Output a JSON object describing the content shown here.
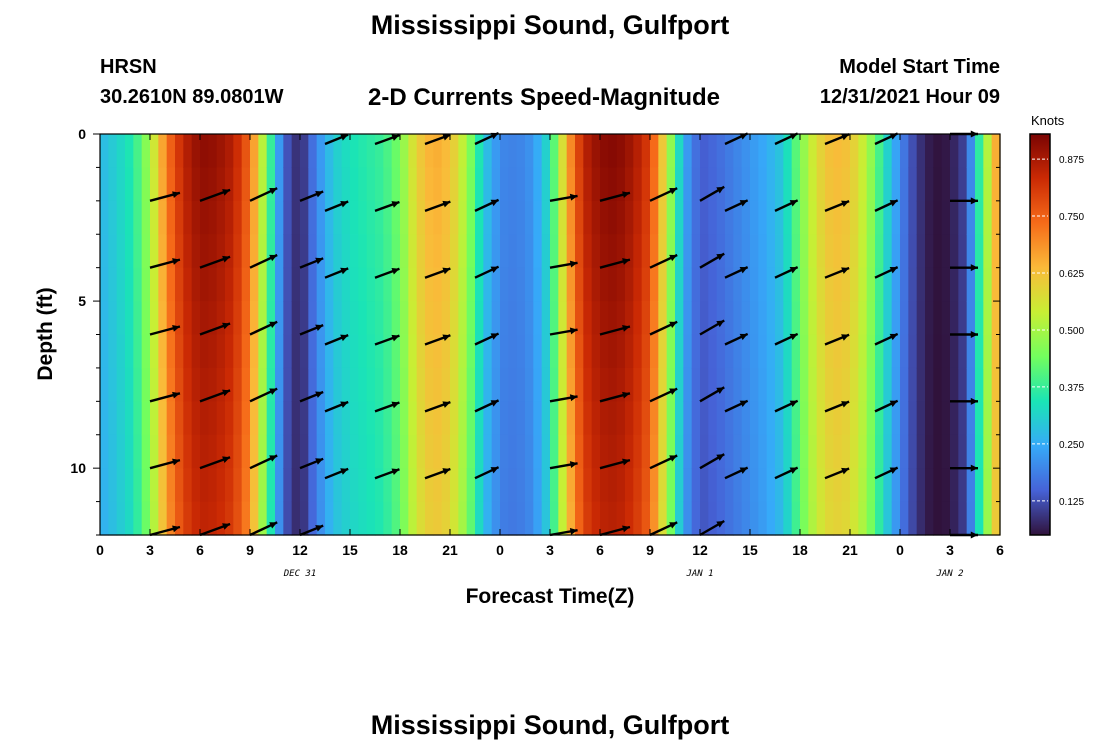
{
  "header": {
    "title": "Mississippi Sound, Gulfport",
    "station": "HRSN",
    "coords": "30.2610N  89.0801W",
    "subtitle": "2-D Currents Speed-Magnitude",
    "start_label": "Model Start Time",
    "start_value": "12/31/2021 Hour 09"
  },
  "footer": {
    "title": "Mississippi Sound, Gulfport"
  },
  "chart_data": {
    "type": "heatmap",
    "title": "2-D Currents Speed-Magnitude",
    "xlabel": "Forecast Time(Z)",
    "ylabel": "Depth (ft)",
    "x_range_hours": [
      0,
      54
    ],
    "x_ticks": [
      {
        "h": 0,
        "label": "0"
      },
      {
        "h": 3,
        "label": "3"
      },
      {
        "h": 6,
        "label": "6"
      },
      {
        "h": 9,
        "label": "9"
      },
      {
        "h": 12,
        "label": "12"
      },
      {
        "h": 15,
        "label": "15"
      },
      {
        "h": 18,
        "label": "18"
      },
      {
        "h": 21,
        "label": "21"
      },
      {
        "h": 24,
        "label": "0"
      },
      {
        "h": 27,
        "label": "3"
      },
      {
        "h": 30,
        "label": "6"
      },
      {
        "h": 33,
        "label": "9"
      },
      {
        "h": 36,
        "label": "12"
      },
      {
        "h": 39,
        "label": "15"
      },
      {
        "h": 42,
        "label": "18"
      },
      {
        "h": 45,
        "label": "21"
      },
      {
        "h": 48,
        "label": "0"
      },
      {
        "h": 51,
        "label": "3"
      },
      {
        "h": 54,
        "label": "6"
      }
    ],
    "date_labels": [
      {
        "h": 12,
        "label": "DEC 31"
      },
      {
        "h": 36,
        "label": "JAN 1"
      },
      {
        "h": 51,
        "label": "JAN 2"
      }
    ],
    "ylim": [
      0,
      12
    ],
    "y_ticks": [
      0,
      5,
      10
    ],
    "colorbar": {
      "unit": "Knots",
      "min": 0.05,
      "max": 0.93,
      "ticks": [
        "0.125",
        "0.250",
        "0.375",
        "0.500",
        "0.625",
        "0.750",
        "0.875"
      ],
      "tick_values": [
        0.125,
        0.25,
        0.375,
        0.5,
        0.625,
        0.75,
        0.875
      ],
      "stops": [
        "#30123b",
        "#4662d7",
        "#36aaf9",
        "#1ae4b6",
        "#72fe5e",
        "#c8ef34",
        "#faba39",
        "#f66b19",
        "#cb2a04",
        "#7a0403"
      ]
    },
    "speed_profile": [
      {
        "h": 0,
        "v": 0.27
      },
      {
        "h": 1,
        "v": 0.31
      },
      {
        "h": 2,
        "v": 0.36
      },
      {
        "h": 3,
        "v": 0.5
      },
      {
        "h": 4,
        "v": 0.72
      },
      {
        "h": 5,
        "v": 0.85
      },
      {
        "h": 6,
        "v": 0.91
      },
      {
        "h": 7,
        "v": 0.9
      },
      {
        "h": 8,
        "v": 0.86
      },
      {
        "h": 9,
        "v": 0.74
      },
      {
        "h": 10,
        "v": 0.45
      },
      {
        "h": 11,
        "v": 0.15
      },
      {
        "h": 12,
        "v": 0.07
      },
      {
        "h": 13,
        "v": 0.2
      },
      {
        "h": 14,
        "v": 0.3
      },
      {
        "h": 15,
        "v": 0.34
      },
      {
        "h": 16,
        "v": 0.36
      },
      {
        "h": 17,
        "v": 0.38
      },
      {
        "h": 18,
        "v": 0.45
      },
      {
        "h": 19,
        "v": 0.6
      },
      {
        "h": 20,
        "v": 0.66
      },
      {
        "h": 21,
        "v": 0.63
      },
      {
        "h": 22,
        "v": 0.5
      },
      {
        "h": 23,
        "v": 0.3
      },
      {
        "h": 24,
        "v": 0.2
      },
      {
        "h": 25,
        "v": 0.19
      },
      {
        "h": 26,
        "v": 0.22
      },
      {
        "h": 27,
        "v": 0.34
      },
      {
        "h": 28,
        "v": 0.65
      },
      {
        "h": 29,
        "v": 0.85
      },
      {
        "h": 30,
        "v": 0.91
      },
      {
        "h": 31,
        "v": 0.92
      },
      {
        "h": 32,
        "v": 0.88
      },
      {
        "h": 33,
        "v": 0.8
      },
      {
        "h": 34,
        "v": 0.55
      },
      {
        "h": 35,
        "v": 0.25
      },
      {
        "h": 36,
        "v": 0.14
      },
      {
        "h": 37,
        "v": 0.16
      },
      {
        "h": 38,
        "v": 0.19
      },
      {
        "h": 39,
        "v": 0.22
      },
      {
        "h": 40,
        "v": 0.25
      },
      {
        "h": 41,
        "v": 0.3
      },
      {
        "h": 42,
        "v": 0.45
      },
      {
        "h": 43,
        "v": 0.58
      },
      {
        "h": 44,
        "v": 0.64
      },
      {
        "h": 45,
        "v": 0.62
      },
      {
        "h": 46,
        "v": 0.52
      },
      {
        "h": 47,
        "v": 0.35
      },
      {
        "h": 48,
        "v": 0.2
      },
      {
        "h": 49,
        "v": 0.1
      },
      {
        "h": 50,
        "v": 0.05
      },
      {
        "h": 51,
        "v": 0.06
      },
      {
        "h": 52,
        "v": 0.12
      },
      {
        "h": 53,
        "v": 0.45
      },
      {
        "h": 54,
        "v": 0.72
      }
    ],
    "arrow_rows_depth_ft": [
      [
        0,
        2,
        4,
        6,
        8,
        10,
        12
      ],
      [
        0.3,
        2.3,
        4.3,
        6.3,
        8.3,
        10.3
      ]
    ],
    "vectors": [
      {
        "h": 3,
        "dir_deg": 75,
        "spd": 0.85
      },
      {
        "h": 6,
        "dir_deg": 70,
        "spd": 0.9
      },
      {
        "h": 9,
        "dir_deg": 65,
        "spd": 0.8
      },
      {
        "h": 12,
        "dir_deg": 68,
        "spd": 0.55
      },
      {
        "h": 13.5,
        "dir_deg": 68,
        "spd": 0.55
      },
      {
        "h": 16.5,
        "dir_deg": 70,
        "spd": 0.6
      },
      {
        "h": 19.5,
        "dir_deg": 70,
        "spd": 0.65
      },
      {
        "h": 22.5,
        "dir_deg": 65,
        "spd": 0.6
      },
      {
        "h": 27,
        "dir_deg": 80,
        "spd": 0.7
      },
      {
        "h": 30,
        "dir_deg": 75,
        "spd": 0.85
      },
      {
        "h": 33,
        "dir_deg": 65,
        "spd": 0.8
      },
      {
        "h": 36,
        "dir_deg": 60,
        "spd": 0.7
      },
      {
        "h": 37.5,
        "dir_deg": 65,
        "spd": 0.55
      },
      {
        "h": 40.5,
        "dir_deg": 65,
        "spd": 0.55
      },
      {
        "h": 43.5,
        "dir_deg": 68,
        "spd": 0.6
      },
      {
        "h": 46.5,
        "dir_deg": 65,
        "spd": 0.55
      },
      {
        "h": 51,
        "dir_deg": 90,
        "spd": 0.7
      }
    ],
    "grid": false,
    "legend": "colorbar-right"
  }
}
